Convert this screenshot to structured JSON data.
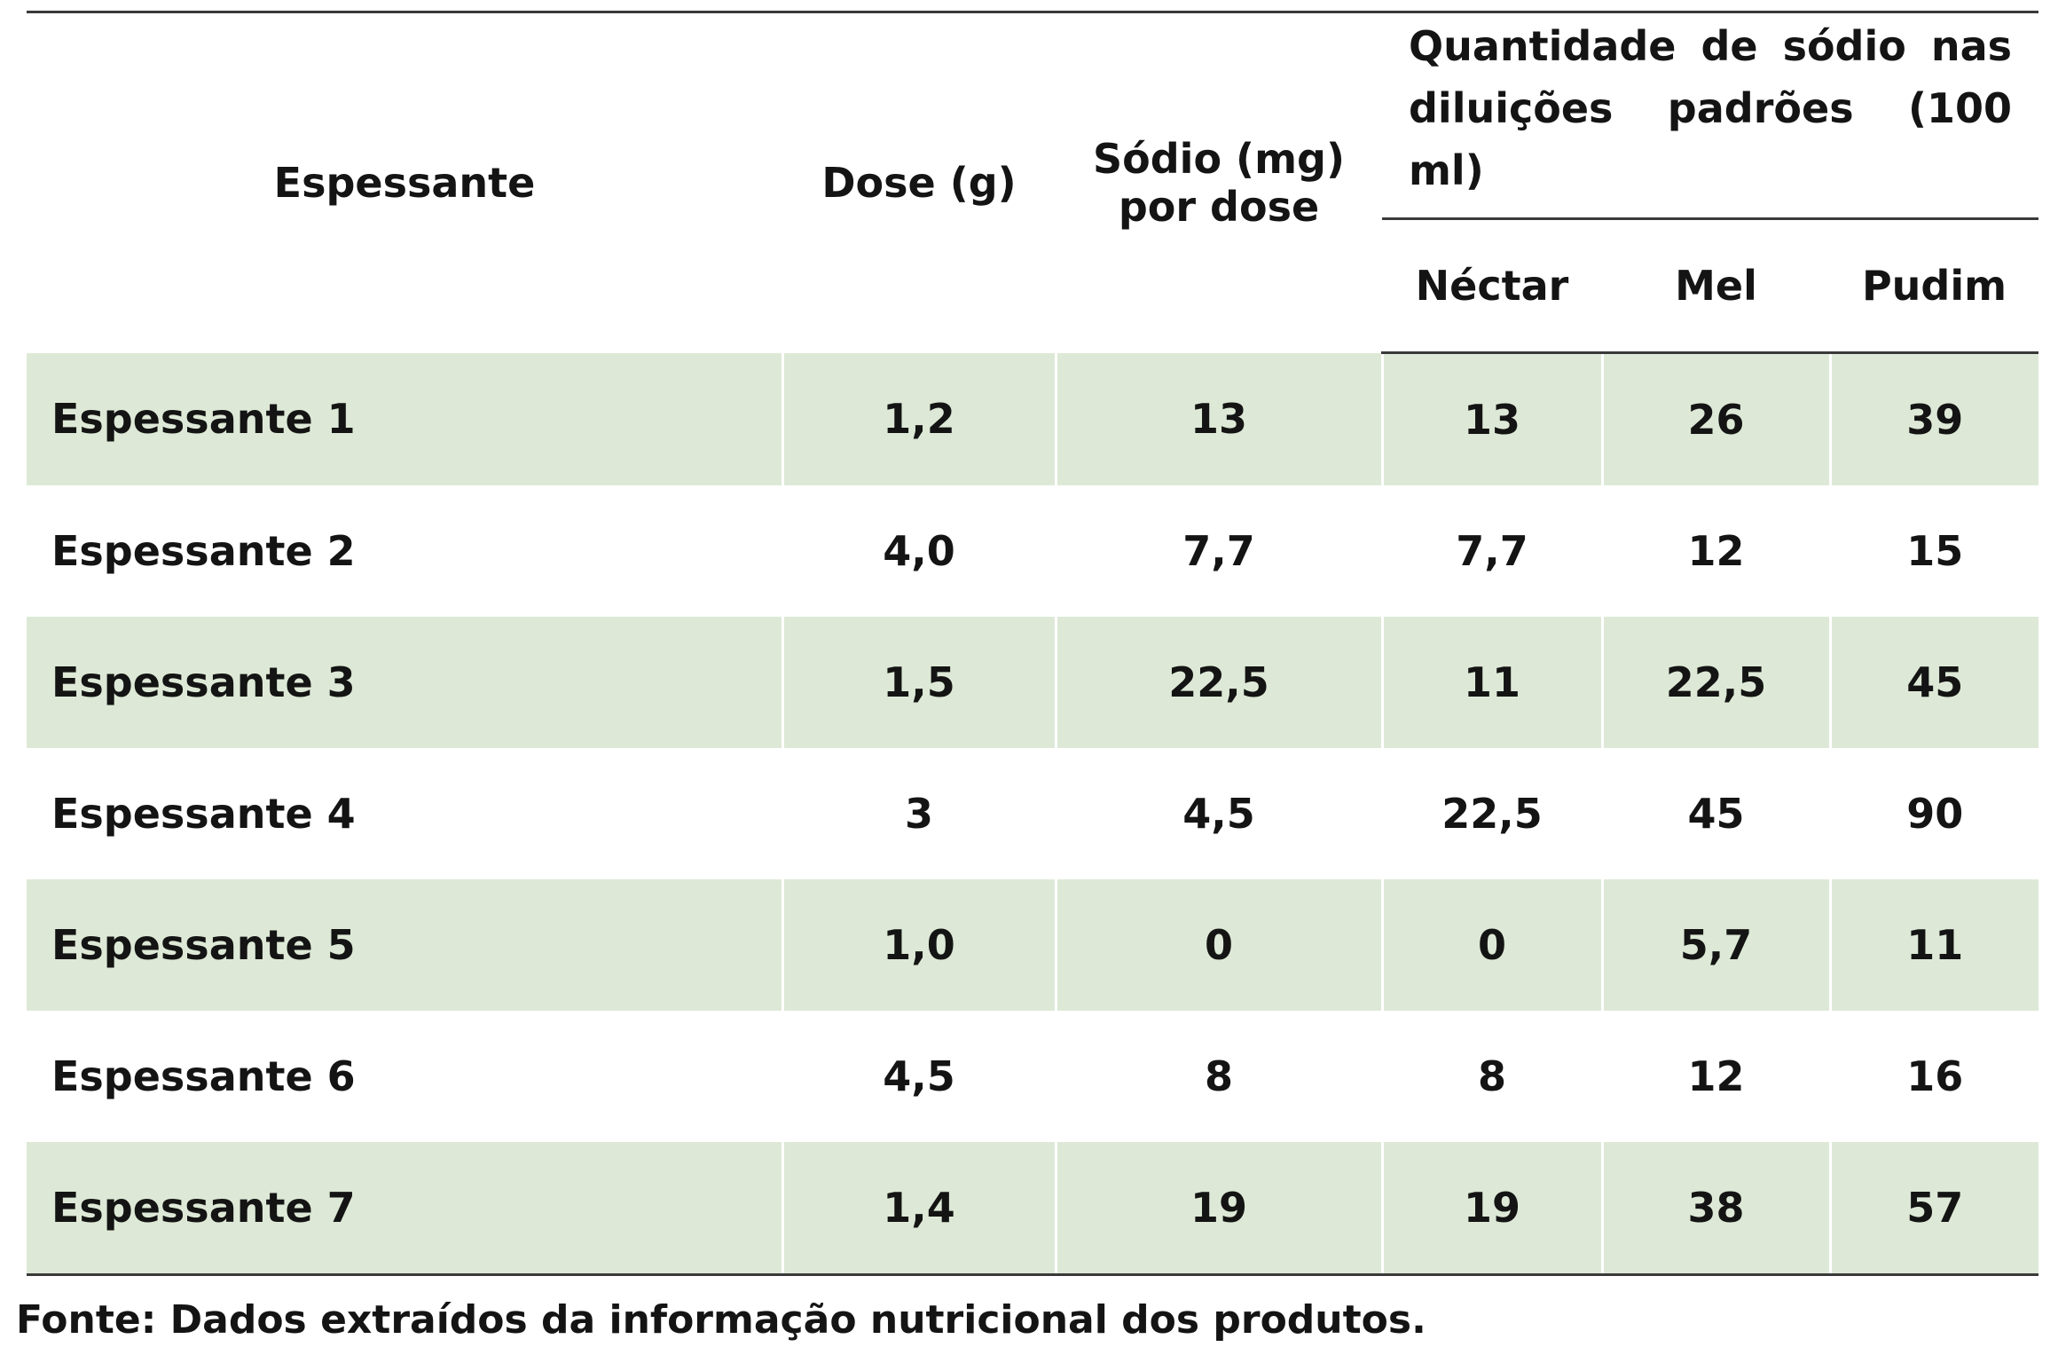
{
  "table": {
    "headers": {
      "espessante": "Espessante",
      "dose": "Dose (g)",
      "sodio_line1": "Sódio (mg)",
      "sodio_line2": "por dose",
      "group_line1": "Quantidade de sódio nas",
      "group_line2": "diluições padrões (100 ml)",
      "nectar": "Néctar",
      "mel": "Mel",
      "pudim": "Pudim"
    },
    "rows": [
      [
        "Espessante 1",
        "1,2",
        "13",
        "13",
        "26",
        "39"
      ],
      [
        "Espessante 2",
        "4,0",
        "7,7",
        "7,7",
        "12",
        "15"
      ],
      [
        "Espessante 3",
        "1,5",
        "22,5",
        "11",
        "22,5",
        "45"
      ],
      [
        "Espessante 4",
        "3",
        "4,5",
        "22,5",
        "45",
        "90"
      ],
      [
        "Espessante 5",
        "1,0",
        "0",
        "0",
        "5,7",
        "11"
      ],
      [
        "Espessante 6",
        "4,5",
        "8",
        "8",
        "12",
        "16"
      ],
      [
        "Espessante 7",
        "1,4",
        "19",
        "19",
        "38",
        "57"
      ]
    ]
  },
  "source": "Fonte: Dados extraídos da informação nutricional dos produtos.",
  "colors": {
    "shade": "#dde9d6",
    "rule": "#3a3a3a",
    "text": "#141414"
  }
}
